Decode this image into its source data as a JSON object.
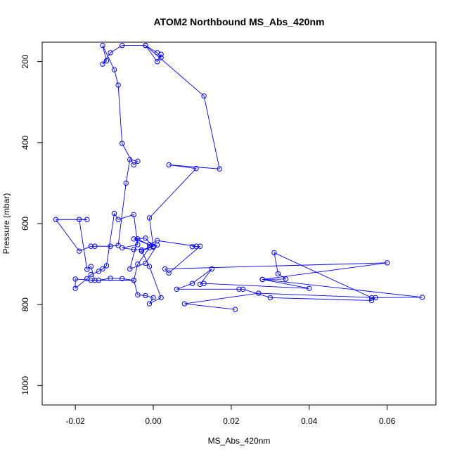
{
  "chart_data": {
    "type": "line",
    "title": "ATOM2 Northbound MS_Abs_420nm",
    "xlabel": "MS_Abs_420nm",
    "ylabel": "Pressure (mbar)",
    "xlim": [
      -0.0285,
      0.0725
    ],
    "ylim": [
      1048,
      152
    ],
    "y_reversed": true,
    "x_ticks": [
      {
        "value": -0.02,
        "label": "-0.02"
      },
      {
        "value": 0.0,
        "label": "0.00"
      },
      {
        "value": 0.02,
        "label": "0.02"
      },
      {
        "value": 0.04,
        "label": "0.04"
      },
      {
        "value": 0.06,
        "label": "0.06"
      }
    ],
    "y_ticks": [
      {
        "value": 200,
        "label": "200"
      },
      {
        "value": 400,
        "label": "400"
      },
      {
        "value": 600,
        "label": "600"
      },
      {
        "value": 800,
        "label": "800"
      },
      {
        "value": 1000,
        "label": "1000"
      }
    ],
    "grid": false,
    "legend": "none",
    "series_color": "#0000ff",
    "marker": "open-circle",
    "series": [
      {
        "x": [
          0.021,
          0.008,
          0.027,
          0.057,
          0.056,
          0.03,
          0.023,
          0.022,
          0.006,
          0.01,
          0.015,
          0.012,
          0.013,
          0.04,
          0.028,
          0.034,
          0.032,
          0.031,
          0.056,
          0.069,
          0.028,
          0.06,
          0.003,
          0.004,
          0.012,
          0.01,
          0.011,
          0.001,
          -0.001,
          -0.005,
          -0.002,
          0.0,
          -0.004,
          -0.006,
          -0.002,
          0.001,
          -0.003,
          -0.005,
          -0.008,
          -0.004,
          -0.005,
          -0.009,
          -0.01,
          -0.012,
          -0.013,
          -0.014,
          -0.016,
          -0.017,
          -0.02,
          -0.02,
          -0.015,
          -0.016,
          -0.017,
          -0.019,
          -0.017,
          -0.025,
          -0.019,
          -0.016,
          -0.015,
          -0.011,
          -0.009,
          -0.007,
          -0.006,
          -0.004,
          -0.005,
          -0.008,
          -0.009,
          -0.01,
          -0.013,
          -0.012,
          -0.013,
          -0.011,
          -0.008,
          -0.002,
          0.001,
          0.002,
          0.002,
          0.001,
          -0.002,
          0.013,
          0.017,
          0.004,
          0.011,
          -0.001,
          0.0,
          -0.003,
          -0.001,
          0.002,
          -0.001,
          0.0,
          -0.002,
          -0.004,
          -0.005,
          -0.008,
          -0.011,
          -0.014,
          -0.016,
          -0.005,
          -0.004,
          -0.001
        ],
        "y": [
          812,
          798,
          772,
          783,
          790,
          783,
          762,
          762,
          762,
          748,
          712,
          750,
          748,
          760,
          738,
          737,
          724,
          672,
          783,
          782,
          738,
          697,
          712,
          722,
          656,
          657,
          656,
          642,
          652,
          638,
          636,
          658,
          638,
          712,
          698,
          653,
          665,
          664,
          660,
          652,
          578,
          590,
          575,
          704,
          712,
          718,
          726,
          736,
          760,
          737,
          740,
          706,
          713,
          590,
          590,
          590,
          668,
          656,
          656,
          656,
          654,
          500,
          442,
          446,
          455,
          402,
          258,
          220,
          160,
          198,
          206,
          178,
          160,
          160,
          178,
          190,
          182,
          200,
          160,
          285,
          465,
          455,
          464,
          586,
          656,
          668,
          706,
          783,
          798,
          783,
          778,
          776,
          740,
          736,
          735,
          740,
          740,
          740,
          700,
          660
        ]
      }
    ]
  }
}
